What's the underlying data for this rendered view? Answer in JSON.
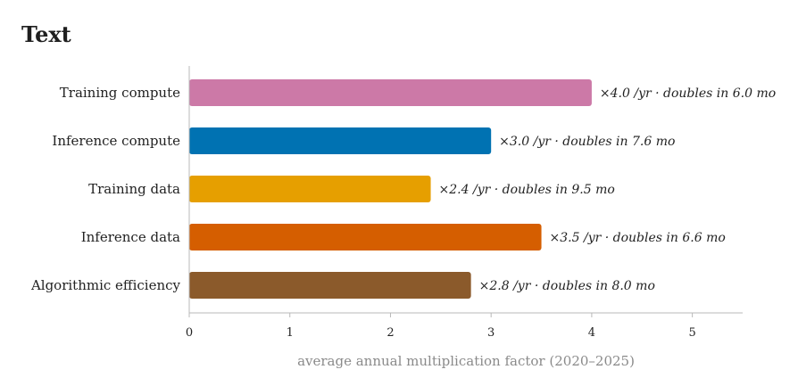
{
  "chart_data": {
    "type": "bar",
    "orientation": "horizontal",
    "title": "Text",
    "categories": [
      "Training compute",
      "Inference compute",
      "Training data",
      "Inference data",
      "Algorithmic efficiency"
    ],
    "values": [
      4.0,
      3.0,
      2.4,
      3.5,
      2.8
    ],
    "value_labels": [
      "×4.0 /yr · doubles in 6.0 mo",
      "×3.0 /yr · doubles in 7.6 mo",
      "×2.4 /yr · doubles in 9.5 mo",
      "×3.5 /yr · doubles in 6.6 mo",
      "×2.8 /yr · doubles in 8.0 mo"
    ],
    "colors": [
      "#cc79a7",
      "#0072b2",
      "#e69f00",
      "#d55e00",
      "#8b5a2b"
    ],
    "xlabel": "average annual multiplication factor (2020–2025)",
    "ylabel": "",
    "xlim": [
      0,
      5.5
    ],
    "xticks": [
      "0",
      "1",
      "2",
      "3",
      "4",
      "5"
    ],
    "grid": false,
    "legend": "none"
  }
}
